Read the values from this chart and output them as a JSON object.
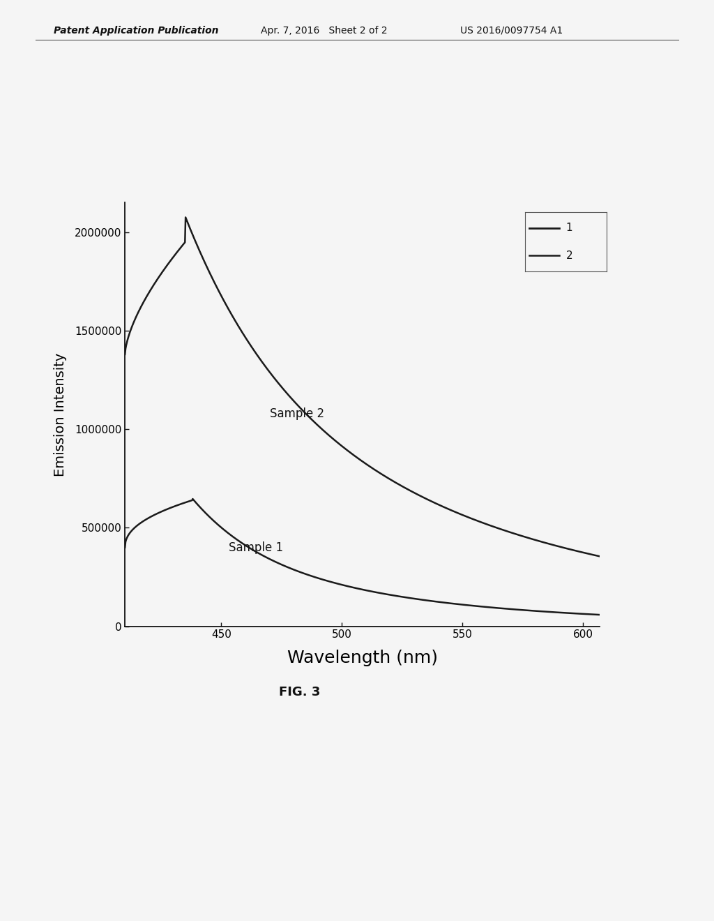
{
  "header_left": "Patent Application Publication",
  "header_center": "Apr. 7, 2016   Sheet 2 of 2",
  "header_right": "US 2016/0097754 A1",
  "xlabel": "Wavelength (nm)",
  "ylabel": "Emission Intensity",
  "fig_label": "FIG. 3",
  "xlim": [
    410,
    607
  ],
  "ylim": [
    0,
    2150000
  ],
  "yticks": [
    0,
    500000,
    1000000,
    1500000,
    2000000
  ],
  "xticks": [
    450,
    500,
    550,
    600
  ],
  "sample1_label": "Sample 1",
  "sample2_label": "Sample 2",
  "legend_labels": [
    "1",
    "2"
  ],
  "line_color": "#1a1a1a",
  "background_color": "#f5f5f5",
  "header_fontsize": 10,
  "axis_label_fontsize": 14,
  "xlabel_fontsize": 18,
  "tick_fontsize": 11,
  "annotation_fontsize": 12,
  "fig_label_fontsize": 13
}
